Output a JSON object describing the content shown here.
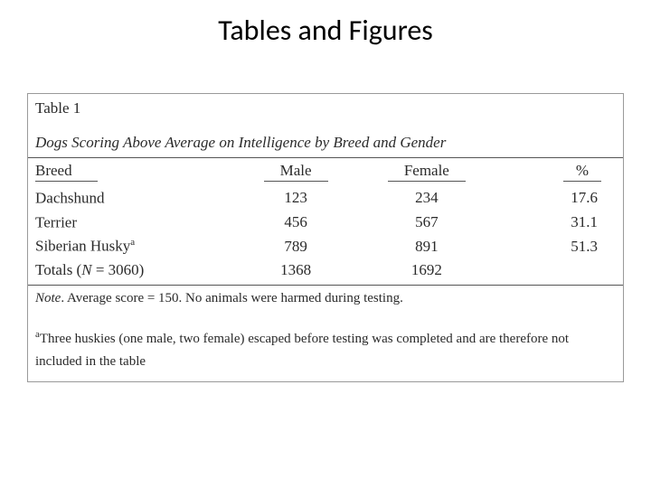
{
  "slide": {
    "title": "Tables and Figures"
  },
  "table": {
    "number": "Table 1",
    "caption": "Dogs Scoring Above Average on Intelligence by Breed and Gender",
    "columns": {
      "breed": "Breed",
      "male": "Male",
      "female": "Female",
      "pct": "%"
    },
    "rows": [
      {
        "breed": "Dachshund",
        "male": "123",
        "female": "234",
        "pct": "17.6",
        "sup": ""
      },
      {
        "breed": "Terrier",
        "male": "456",
        "female": "567",
        "pct": "31.1",
        "sup": ""
      },
      {
        "breed": "Siberian Husky",
        "male": "789",
        "female": "891",
        "pct": "51.3",
        "sup": "a"
      }
    ],
    "totals": {
      "label_prefix": "Totals (",
      "label_N": "N",
      "label_eq": " = 3060)",
      "male": "1368",
      "female": "1692",
      "pct": ""
    },
    "note": {
      "label": "Note",
      "text": ". Average score = 150. No animals were harmed during testing."
    },
    "footnote": {
      "marker": "a",
      "text": "Three huskies (one male, two female) escaped before testing was completed and are therefore not included in the table"
    }
  },
  "style": {
    "background_color": "#ffffff",
    "text_color": "#2a2a2a",
    "border_color": "#9a9a9a",
    "rule_color": "#555555",
    "title_fontsize": 32,
    "body_fontsize": 17,
    "note_fontsize": 15,
    "font_family_title": "Calibri",
    "font_family_body": "Times New Roman"
  }
}
